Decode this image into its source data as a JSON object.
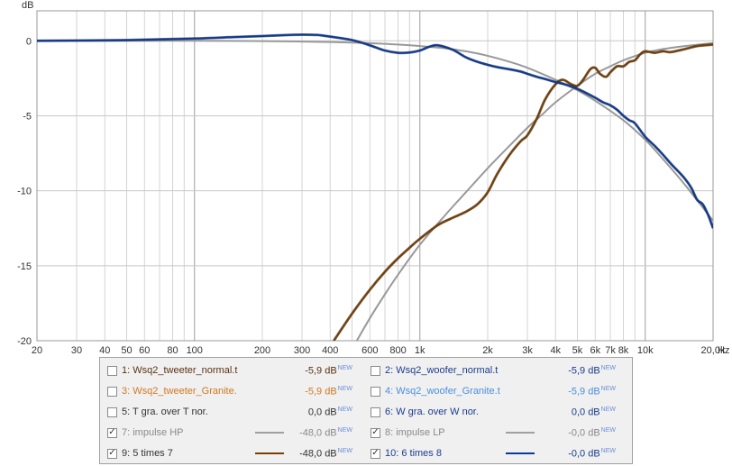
{
  "chart_data": {
    "type": "line",
    "ylabel": "dB",
    "xunit": "Hz",
    "xscale": "log",
    "xlim": [
      20,
      20000
    ],
    "ylim": [
      -20,
      2
    ],
    "grid": true,
    "x_ticks": [
      {
        "v": 20,
        "label": "20"
      },
      {
        "v": 30,
        "label": "30"
      },
      {
        "v": 40,
        "label": "40"
      },
      {
        "v": 50,
        "label": "50"
      },
      {
        "v": 60,
        "label": "60"
      },
      {
        "v": 80,
        "label": "80"
      },
      {
        "v": 100,
        "label": "100"
      },
      {
        "v": 200,
        "label": "200"
      },
      {
        "v": 300,
        "label": "300"
      },
      {
        "v": 400,
        "label": "400"
      },
      {
        "v": 600,
        "label": "600"
      },
      {
        "v": 800,
        "label": "800"
      },
      {
        "v": 1000,
        "label": "1k"
      },
      {
        "v": 2000,
        "label": "2k"
      },
      {
        "v": 3000,
        "label": "3k"
      },
      {
        "v": 4000,
        "label": "4k"
      },
      {
        "v": 5000,
        "label": "5k"
      },
      {
        "v": 6000,
        "label": "6k"
      },
      {
        "v": 7000,
        "label": "7k"
      },
      {
        "v": 8000,
        "label": "8k"
      },
      {
        "v": 10000,
        "label": "10k"
      },
      {
        "v": 20000,
        "label": "20,0k"
      }
    ],
    "y_ticks": [
      {
        "v": 0,
        "label": "0"
      },
      {
        "v": -5,
        "label": "-5"
      },
      {
        "v": -10,
        "label": "-10"
      },
      {
        "v": -15,
        "label": "-15"
      },
      {
        "v": -20,
        "label": "-20"
      }
    ],
    "series": [
      {
        "name": "7: impulse HP",
        "color": "#999999",
        "x": [
          525,
          600,
          700,
          800,
          1000,
          1300,
          1600,
          2000,
          2500,
          3000,
          3500,
          4000,
          5000,
          6000,
          7000,
          8000,
          10000,
          12000,
          15000,
          20000
        ],
        "y": [
          -20,
          -18.5,
          -16.9,
          -15.6,
          -13.6,
          -11.6,
          -10.1,
          -8.5,
          -7.0,
          -5.8,
          -4.9,
          -4.1,
          -3.0,
          -2.2,
          -1.7,
          -1.3,
          -0.8,
          -0.55,
          -0.35,
          -0.15
        ]
      },
      {
        "name": "8: impulse LP",
        "color": "#999999",
        "x": [
          20,
          100,
          200,
          300,
          400,
          500,
          600,
          700,
          800,
          1000,
          1300,
          1600,
          2000,
          2500,
          3000,
          4000,
          5000,
          6000,
          8000,
          10000,
          12000,
          15000,
          20000
        ],
        "y": [
          0,
          0,
          -0.02,
          -0.05,
          -0.08,
          -0.12,
          -0.16,
          -0.2,
          -0.25,
          -0.35,
          -0.5,
          -0.7,
          -1.0,
          -1.4,
          -1.8,
          -2.6,
          -3.3,
          -4.0,
          -5.3,
          -6.6,
          -7.9,
          -9.6,
          -12.0
        ]
      },
      {
        "name": "9: 5 times 7",
        "color": "#7a3e00",
        "x": [
          415,
          500,
          600,
          700,
          800,
          900,
          1000,
          1200,
          1400,
          1600,
          1800,
          2000,
          2200,
          2500,
          2800,
          3000,
          3300,
          3600,
          4000,
          4300,
          4700,
          5000,
          5300,
          5700,
          6000,
          6300,
          6700,
          7000,
          7500,
          8000,
          8500,
          9000,
          9500,
          10000,
          11000,
          12000,
          13000,
          15000,
          17000,
          20000
        ],
        "y": [
          -20,
          -18.2,
          -16.6,
          -15.4,
          -14.5,
          -13.8,
          -13.2,
          -12.3,
          -11.8,
          -11.4,
          -10.9,
          -10.1,
          -8.9,
          -7.6,
          -6.7,
          -6.3,
          -5.2,
          -3.9,
          -2.9,
          -2.6,
          -2.9,
          -3.0,
          -2.6,
          -1.9,
          -1.8,
          -2.2,
          -2.4,
          -2.1,
          -1.7,
          -1.7,
          -1.4,
          -1.3,
          -0.9,
          -0.7,
          -0.8,
          -0.7,
          -0.75,
          -0.55,
          -0.35,
          -0.25
        ]
      },
      {
        "name": "10: 6 times 8",
        "color": "#0b3a9c",
        "x": [
          20,
          50,
          100,
          150,
          200,
          250,
          300,
          350,
          400,
          500,
          600,
          700,
          800,
          900,
          1000,
          1100,
          1200,
          1400,
          1600,
          1800,
          2000,
          2200,
          2500,
          2800,
          3000,
          3300,
          3600,
          4000,
          4500,
          5000,
          5500,
          6000,
          6500,
          7000,
          7500,
          8000,
          8500,
          9000,
          10000,
          11000,
          12000,
          13000,
          14000,
          15000,
          16000,
          17000,
          18000,
          19000,
          20000
        ],
        "y": [
          0,
          0.05,
          0.15,
          0.25,
          0.32,
          0.38,
          0.41,
          0.39,
          0.28,
          0.05,
          -0.3,
          -0.65,
          -0.8,
          -0.78,
          -0.65,
          -0.4,
          -0.3,
          -0.6,
          -1.1,
          -1.4,
          -1.6,
          -1.75,
          -1.9,
          -2.05,
          -2.2,
          -2.4,
          -2.55,
          -2.75,
          -2.95,
          -3.2,
          -3.5,
          -3.8,
          -4.1,
          -4.3,
          -4.6,
          -5.0,
          -5.3,
          -5.5,
          -6.4,
          -7.0,
          -7.6,
          -8.2,
          -8.7,
          -9.2,
          -9.8,
          -10.6,
          -10.9,
          -11.6,
          -12.5
        ]
      }
    ]
  },
  "legend": {
    "rows": [
      {
        "left": {
          "label": "1: Wsq2_tweeter_normal.t",
          "value": "-5,9 dB",
          "new": "NEW",
          "checked": false,
          "textColor": "#5c3311",
          "lineColor": ""
        },
        "right": {
          "label": "2: Wsq2_woofer_normal.t",
          "value": "-5,9 dB",
          "new": "NEW",
          "checked": false,
          "textColor": "#1b3d8e",
          "lineColor": ""
        }
      },
      {
        "left": {
          "label": "3: Wsq2_tweeter_Granite.",
          "value": "-5,9 dB",
          "new": "NEW",
          "checked": false,
          "textColor": "#d2781f",
          "lineColor": ""
        },
        "right": {
          "label": "4: Wsq2_woofer_Granite.t",
          "value": "-5,9 dB",
          "new": "NEW",
          "checked": false,
          "textColor": "#4b8fe0",
          "lineColor": ""
        }
      },
      {
        "left": {
          "label": "5: T gra. over T nor.",
          "value": "0,0 dB",
          "new": "NEW",
          "checked": false,
          "textColor": "#333333",
          "lineColor": ""
        },
        "right": {
          "label": "6: W gra. over W nor.",
          "value": "0,0 dB",
          "new": "NEW",
          "checked": false,
          "textColor": "#1b3d8e",
          "lineColor": ""
        }
      },
      {
        "left": {
          "label": "7: impulse HP",
          "value": "-48,0 dB",
          "new": "NEW",
          "checked": true,
          "textColor": "#8a8a8a",
          "lineColor": "#a0a0a0"
        },
        "right": {
          "label": "8: impulse LP",
          "value": "-0,0 dB",
          "new": "NEW",
          "checked": true,
          "textColor": "#8a8a8a",
          "lineColor": "#a0a0a0"
        }
      },
      {
        "left": {
          "label": "9: 5 times 7",
          "value": "-48,0 dB",
          "new": "NEW",
          "checked": true,
          "textColor": "#333333",
          "lineColor": "#7a3e00"
        },
        "right": {
          "label": "10: 6 times 8",
          "value": "-0,0 dB",
          "new": "NEW",
          "checked": true,
          "textColor": "#1b3d8e",
          "lineColor": "#0b3a9c"
        }
      }
    ]
  }
}
